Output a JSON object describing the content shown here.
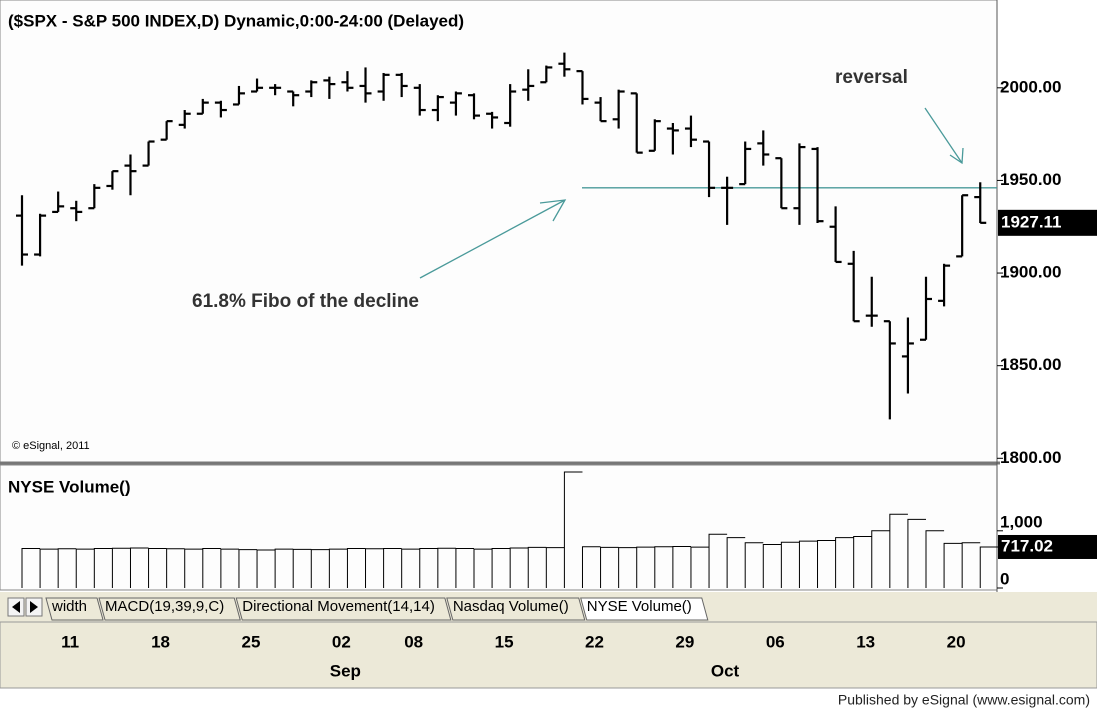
{
  "chart_data": [
    {
      "type": "ohlc",
      "title": "($SPX - S&P 500 INDEX,D) Dynamic,0:00-24:00 (Delayed)",
      "annotations": {
        "reversal": "reversal",
        "fibo": "61.8% Fibo of the decline",
        "copyright": "© eSignal, 2011"
      },
      "hline": 1946,
      "categories": [
        null,
        null,
        "11",
        null,
        null,
        null,
        null,
        "18",
        null,
        null,
        null,
        null,
        "25",
        null,
        null,
        null,
        null,
        "02",
        null,
        null,
        null,
        "08",
        null,
        null,
        null,
        null,
        "15",
        null,
        null,
        null,
        null,
        "22",
        null,
        null,
        null,
        null,
        "29",
        null,
        null,
        null,
        null,
        "06",
        null,
        null,
        null,
        null,
        "13",
        null,
        null,
        null,
        null,
        "20",
        null,
        null
      ],
      "month_labels": [
        null,
        null,
        null,
        null,
        null,
        null,
        null,
        null,
        null,
        null,
        null,
        null,
        null,
        null,
        null,
        null,
        null,
        "Sep",
        null,
        null,
        null,
        null,
        null,
        null,
        null,
        null,
        null,
        null,
        null,
        null,
        null,
        null,
        null,
        null,
        null,
        null,
        null,
        null,
        "Oct",
        null,
        null,
        null,
        null,
        null,
        null,
        null,
        null,
        null,
        null,
        null,
        null,
        null,
        null,
        null
      ],
      "open": [
        1931,
        1910,
        1933,
        1935,
        1935,
        1947,
        1958,
        1958,
        1972,
        1980,
        1986,
        1992,
        1991,
        1998,
        2000,
        1998,
        1998,
        2004,
        2003,
        2001,
        1998,
        2007,
        2000,
        1988,
        1992,
        1996,
        1986,
        1981,
        1999,
        2003,
        2013,
        2009,
        1992,
        1983,
        1997,
        1966,
        1978,
        1978,
        1971,
        1946,
        1948,
        1970,
        1962,
        1935,
        1967,
        1925,
        1905,
        1877,
        1874,
        1855,
        1864,
        1885,
        1909,
        1941
      ],
      "high": [
        1942,
        1932,
        1944,
        1939,
        1948,
        1955,
        1964,
        1971,
        1982,
        1988,
        1994,
        1993,
        2001,
        2005,
        2002,
        1998,
        2004,
        2006,
        2009,
        2011,
        2008,
        2008,
        2002,
        1996,
        1998,
        1997,
        1987,
        2002,
        2010,
        2012,
        2019,
        2009,
        1995,
        1999,
        1997,
        1983,
        1981,
        1985,
        1971,
        1952,
        1971,
        1977,
        1962,
        1970,
        1968,
        1936,
        1912,
        1898,
        1874,
        1876,
        1898,
        1905,
        1942,
        1949
      ],
      "low": [
        1904,
        1909,
        1933,
        1928,
        1935,
        1945,
        1942,
        1958,
        1972,
        1978,
        1986,
        1984,
        1991,
        1998,
        1996,
        1990,
        1995,
        1994,
        1998,
        1992,
        1993,
        1995,
        1985,
        1982,
        1985,
        1983,
        1978,
        1979,
        1993,
        2003,
        2006,
        1991,
        1982,
        1978,
        1965,
        1966,
        1964,
        1968,
        1941,
        1926,
        1948,
        1958,
        1935,
        1926,
        1927,
        1906,
        1874,
        1871,
        1821,
        1835,
        1864,
        1882,
        1909,
        1927
      ],
      "close": [
        1910,
        1931,
        1936,
        1933,
        1946,
        1955,
        1955,
        1971,
        1982,
        1986,
        1992,
        1988,
        1997,
        2000,
        2000,
        1996,
        2003,
        2002,
        2000,
        1997,
        2007,
        2001,
        1988,
        1995,
        1997,
        1985,
        1984,
        1998,
        2001,
        2011,
        2010,
        1994,
        1982,
        1998,
        1965,
        1982,
        1977,
        1972,
        1946,
        1946,
        1967,
        1964,
        1935,
        1968,
        1928,
        1906,
        1874,
        1877,
        1862,
        1862,
        1886,
        1904,
        1942,
        1927.11
      ],
      "ylim": [
        1798,
        2042
      ],
      "yticks": [
        {
          "value": 1800,
          "label": "1800.00"
        },
        {
          "value": 1850,
          "label": "1850.00"
        },
        {
          "value": 1900,
          "label": "1900.00"
        },
        {
          "value": 1950,
          "label": "1950.00"
        },
        {
          "value": 2000,
          "label": "2000.00"
        }
      ],
      "color": "#000000",
      "line_color": "#4a9a9a"
    },
    {
      "type": "bar",
      "title": "NYSE Volume()",
      "values": [
        690,
        680,
        685,
        680,
        690,
        695,
        700,
        690,
        685,
        680,
        690,
        680,
        670,
        665,
        680,
        675,
        670,
        680,
        690,
        685,
        690,
        680,
        690,
        695,
        690,
        680,
        690,
        700,
        710,
        705,
        2028,
        720,
        710,
        705,
        715,
        720,
        725,
        715,
        940,
        880,
        790,
        760,
        800,
        820,
        830,
        880,
        900,
        1000,
        1290,
        1200,
        1000,
        780,
        790,
        717.02
      ],
      "ylim": [
        0,
        2150
      ],
      "yticks": [
        0,
        {
          "value": 1000,
          "label": "1,000"
        }
      ],
      "color": "#000000"
    }
  ],
  "tabs": [
    "width",
    "MACD(19,39,9,C)",
    "Directional Movement(14,14)",
    "Nasdaq Volume()",
    "NYSE Volume()"
  ],
  "footer": "Published by eSignal (www.esignal.com)"
}
